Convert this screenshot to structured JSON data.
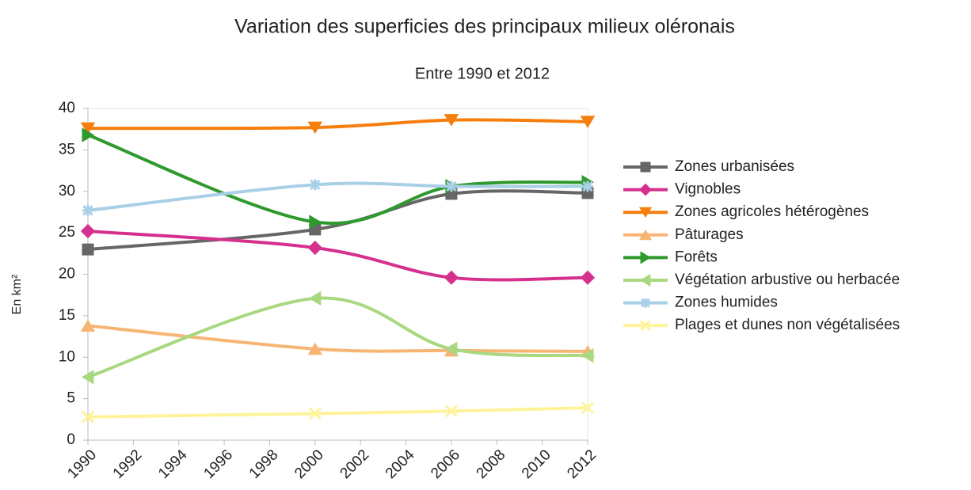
{
  "chart_data": {
    "type": "line",
    "title": "Variation des superficies des principaux milieux oléronais",
    "subtitle": "Entre 1990 et 2012",
    "y_label": "En km²",
    "smooth": true,
    "grid": false,
    "legend": "right",
    "x": [
      1990,
      2000,
      2006,
      2012
    ],
    "xlim": [
      1990,
      2012
    ],
    "xticks": [
      1990,
      1992,
      1994,
      1996,
      1998,
      2000,
      2002,
      2004,
      2006,
      2008,
      2010,
      2012
    ],
    "ylim": [
      0,
      40
    ],
    "yticks": [
      0,
      5,
      10,
      15,
      20,
      25,
      30,
      35,
      40
    ],
    "series": [
      {
        "name": "Zones urbanisées",
        "color": "#666666",
        "marker": "square",
        "values": [
          23.0,
          25.4,
          29.7,
          29.8
        ]
      },
      {
        "name": "Vignobles",
        "color": "#d6308e",
        "marker": "diamond",
        "values": [
          25.2,
          23.2,
          19.6,
          19.6
        ]
      },
      {
        "name": "Zones agricoles hétérogènes",
        "color": "#f57e0c",
        "marker": "triangle-down",
        "values": [
          37.6,
          37.7,
          38.6,
          38.4
        ]
      },
      {
        "name": "Pâturages",
        "color": "#f7b574",
        "marker": "triangle-up",
        "values": [
          13.8,
          11.0,
          10.8,
          10.7
        ]
      },
      {
        "name": "Forêts",
        "color": "#2e9a2e",
        "marker": "triangle-right",
        "values": [
          36.8,
          26.3,
          30.6,
          31.1
        ]
      },
      {
        "name": "Végétation arbustive ou herbacée",
        "color": "#a8d880",
        "marker": "triangle-left",
        "values": [
          7.6,
          17.1,
          11.0,
          10.2
        ]
      },
      {
        "name": "Zones humides",
        "color": "#a8cfe6",
        "marker": "star",
        "values": [
          27.7,
          30.8,
          30.6,
          30.6
        ]
      },
      {
        "name": "Plages et dunes non végétalisées",
        "color": "#fff39a",
        "marker": "x",
        "values": [
          2.8,
          3.2,
          3.5,
          3.9
        ]
      }
    ]
  }
}
